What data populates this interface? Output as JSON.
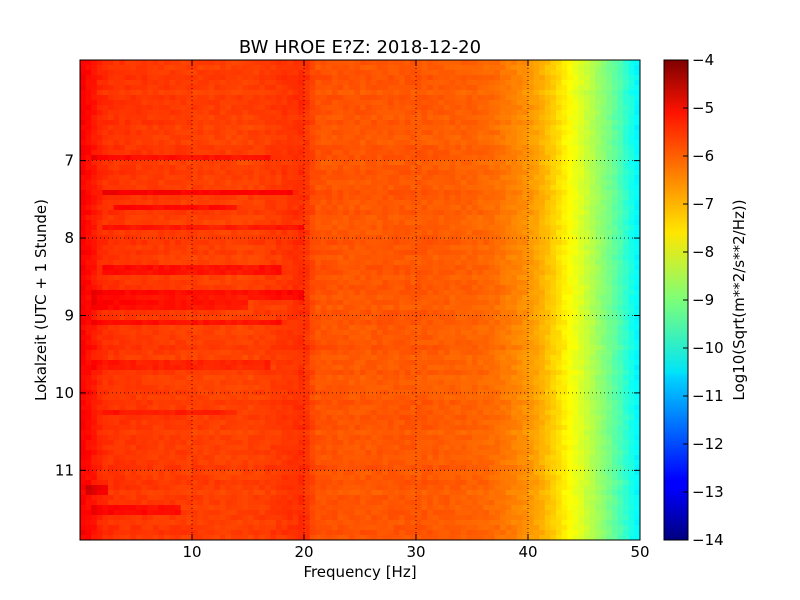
{
  "chart_data": {
    "type": "heatmap",
    "title": "BW HROE E?Z: 2018-12-20",
    "xlabel": "Frequency [Hz]",
    "ylabel": "Lokalzeit (UTC + 1 Stunde)",
    "xlim": [
      0,
      50
    ],
    "ylim": [
      5.7,
      11.9
    ],
    "y_inverted": true,
    "xticks": [
      10,
      20,
      30,
      40,
      50
    ],
    "yticks": [
      7,
      8,
      9,
      10,
      11
    ],
    "grid": true,
    "colormap": "jet",
    "colorbar": {
      "label": "Log10(Sqrt(m**2/s**2/Hz))",
      "range": [
        -14,
        -4
      ],
      "ticks": [
        -4,
        -5,
        -6,
        -7,
        -8,
        -9,
        -10,
        -11,
        -12,
        -13,
        -14
      ]
    },
    "spectrum_profile": {
      "frequency_hz": [
        0,
        1,
        2,
        5,
        10,
        15,
        19,
        20,
        21,
        25,
        30,
        35,
        37,
        39,
        40,
        41,
        42,
        43,
        44,
        45,
        46,
        47,
        48,
        49,
        50
      ],
      "log10_amplitude": [
        -5.2,
        -5.4,
        -5.7,
        -5.8,
        -5.85,
        -5.9,
        -5.75,
        -5.65,
        -6.05,
        -6.1,
        -6.1,
        -6.2,
        -6.3,
        -6.55,
        -6.7,
        -6.9,
        -7.2,
        -7.5,
        -7.85,
        -8.2,
        -8.6,
        -9.0,
        -9.4,
        -9.9,
        -10.4
      ]
    },
    "band_events": [
      {
        "time": 6.95,
        "f_start": 1,
        "f_end": 17,
        "strength": 0.4
      },
      {
        "time": 7.4,
        "f_start": 2,
        "f_end": 19,
        "strength": 0.55
      },
      {
        "time": 7.6,
        "f_start": 3,
        "f_end": 14,
        "strength": 0.5
      },
      {
        "time": 7.85,
        "f_start": 2,
        "f_end": 20,
        "strength": 0.35
      },
      {
        "time": 8.4,
        "f_start": 2,
        "f_end": 18,
        "strength": 0.4
      },
      {
        "time": 8.75,
        "f_start": 1,
        "f_end": 20,
        "strength": 0.45
      },
      {
        "time": 8.85,
        "f_start": 1,
        "f_end": 15,
        "strength": 0.45
      },
      {
        "time": 9.1,
        "f_start": 1,
        "f_end": 18,
        "strength": 0.4
      },
      {
        "time": 9.65,
        "f_start": 1,
        "f_end": 17,
        "strength": 0.3
      },
      {
        "time": 10.25,
        "f_start": 2,
        "f_end": 14,
        "strength": 0.3
      },
      {
        "time": 11.25,
        "f_start": 0.5,
        "f_end": 2.5,
        "strength": 0.6
      },
      {
        "time": 11.5,
        "f_start": 1,
        "f_end": 9,
        "strength": 0.45
      }
    ]
  }
}
